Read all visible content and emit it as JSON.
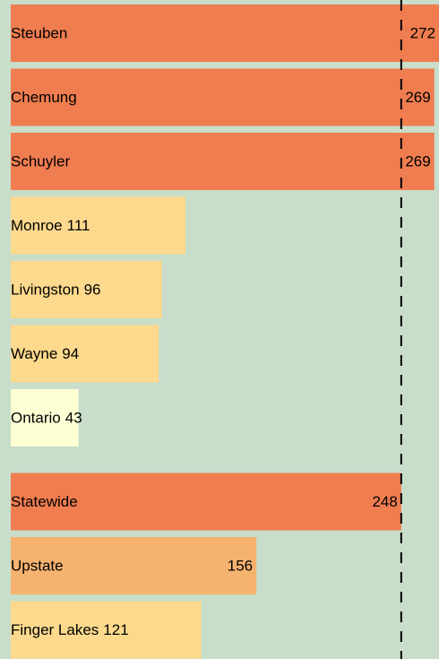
{
  "chart_data": {
    "type": "bar",
    "orientation": "horizontal",
    "categories": [
      "Steuben",
      "Chemung",
      "Schuyler",
      "Monroe",
      "Livingston",
      "Wayne",
      "Ontario",
      "Statewide",
      "Upstate",
      "Finger Lakes"
    ],
    "values": [
      272,
      269,
      269,
      111,
      96,
      94,
      43,
      248,
      156,
      121
    ],
    "colors": [
      "#ef7d50",
      "#ef7d50",
      "#ef7d50",
      "#fdd98d",
      "#fdd98d",
      "#fdd98d",
      "#ffffd6",
      "#ef7d50",
      "#f6b26f",
      "#fdd98d"
    ],
    "xlim": [
      0,
      272
    ]
  }
}
